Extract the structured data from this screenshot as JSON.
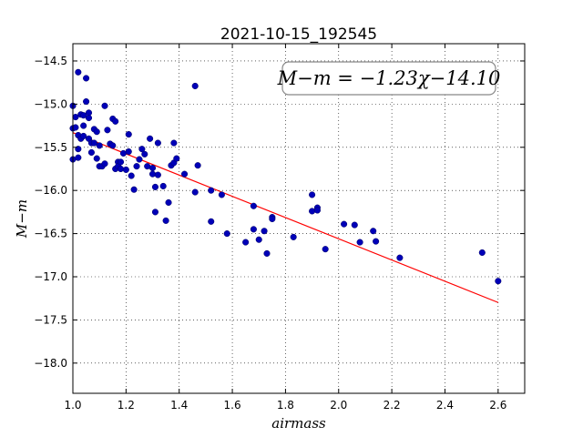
{
  "chart_data": {
    "type": "scatter",
    "title": "2021-10-15_192545",
    "xlabel": "airmass",
    "ylabel": "M−m",
    "xlim": [
      1.0,
      2.7
    ],
    "ylim": [
      -18.35,
      -14.3
    ],
    "y_inverted": true,
    "grid": true,
    "x_ticks": [
      1.0,
      1.2,
      1.4,
      1.6,
      1.8,
      2.0,
      2.2,
      2.4,
      2.6
    ],
    "x_tick_labels": [
      "1.0",
      "1.2",
      "1.4",
      "1.6",
      "1.8",
      "2.0",
      "2.2",
      "2.4",
      "2.6"
    ],
    "y_ticks": [
      -14.5,
      -15.0,
      -15.5,
      -16.0,
      -16.5,
      -17.0,
      -17.5,
      -18.0
    ],
    "y_tick_labels": [
      "−14.5",
      "−15.0",
      "−15.5",
      "−16.0",
      "−16.5",
      "−17.0",
      "−17.5",
      "−18.0"
    ],
    "annotation": "M−m = −1.23χ−14.10",
    "annotation_position": "top-right",
    "fit_line": {
      "slope": -1.23,
      "intercept": -14.1,
      "x_range": [
        1.0,
        2.6
      ],
      "color": "#ff0000"
    },
    "series": [
      {
        "marker_color": "#0000b8",
        "points": [
          [
            1.0,
            -15.02
          ],
          [
            1.0,
            -15.28
          ],
          [
            1.0,
            -15.64
          ],
          [
            1.01,
            -15.15
          ],
          [
            1.01,
            -15.27
          ],
          [
            1.02,
            -14.63
          ],
          [
            1.02,
            -15.36
          ],
          [
            1.02,
            -15.52
          ],
          [
            1.02,
            -15.62
          ],
          [
            1.03,
            -15.12
          ],
          [
            1.03,
            -15.4
          ],
          [
            1.04,
            -15.13
          ],
          [
            1.04,
            -15.25
          ],
          [
            1.04,
            -15.37
          ],
          [
            1.05,
            -14.7
          ],
          [
            1.05,
            -14.97
          ],
          [
            1.06,
            -15.1
          ],
          [
            1.06,
            -15.16
          ],
          [
            1.06,
            -15.4
          ],
          [
            1.07,
            -15.45
          ],
          [
            1.07,
            -15.56
          ],
          [
            1.08,
            -15.29
          ],
          [
            1.08,
            -15.45
          ],
          [
            1.09,
            -15.32
          ],
          [
            1.09,
            -15.63
          ],
          [
            1.1,
            -15.48
          ],
          [
            1.1,
            -15.72
          ],
          [
            1.11,
            -15.72
          ],
          [
            1.12,
            -15.69
          ],
          [
            1.12,
            -15.02
          ],
          [
            1.13,
            -15.3
          ],
          [
            1.14,
            -15.46
          ],
          [
            1.15,
            -15.17
          ],
          [
            1.15,
            -15.48
          ],
          [
            1.16,
            -15.2
          ],
          [
            1.16,
            -15.75
          ],
          [
            1.17,
            -15.67
          ],
          [
            1.17,
            -15.72
          ],
          [
            1.18,
            -15.67
          ],
          [
            1.18,
            -15.75
          ],
          [
            1.19,
            -15.57
          ],
          [
            1.2,
            -15.76
          ],
          [
            1.21,
            -15.35
          ],
          [
            1.21,
            -15.55
          ],
          [
            1.22,
            -15.83
          ],
          [
            1.23,
            -15.99
          ],
          [
            1.24,
            -15.72
          ],
          [
            1.25,
            -15.64
          ],
          [
            1.26,
            -15.52
          ],
          [
            1.27,
            -15.58
          ],
          [
            1.28,
            -15.72
          ],
          [
            1.29,
            -15.4
          ],
          [
            1.3,
            -15.74
          ],
          [
            1.3,
            -15.81
          ],
          [
            1.31,
            -15.96
          ],
          [
            1.31,
            -16.25
          ],
          [
            1.32,
            -15.45
          ],
          [
            1.32,
            -15.82
          ],
          [
            1.34,
            -15.95
          ],
          [
            1.35,
            -16.35
          ],
          [
            1.36,
            -16.14
          ],
          [
            1.37,
            -15.71
          ],
          [
            1.38,
            -15.68
          ],
          [
            1.38,
            -15.45
          ],
          [
            1.39,
            -15.63
          ],
          [
            1.42,
            -15.81
          ],
          [
            1.46,
            -14.79
          ],
          [
            1.46,
            -16.02
          ],
          [
            1.47,
            -15.71
          ],
          [
            1.52,
            -16.0
          ],
          [
            1.52,
            -16.36
          ],
          [
            1.56,
            -16.05
          ],
          [
            1.58,
            -16.5
          ],
          [
            1.65,
            -16.6
          ],
          [
            1.68,
            -16.18
          ],
          [
            1.68,
            -16.45
          ],
          [
            1.7,
            -16.57
          ],
          [
            1.72,
            -16.47
          ],
          [
            1.73,
            -16.73
          ],
          [
            1.75,
            -16.31
          ],
          [
            1.75,
            -16.33
          ],
          [
            1.83,
            -16.54
          ],
          [
            1.9,
            -16.05
          ],
          [
            1.9,
            -16.24
          ],
          [
            1.92,
            -16.2
          ],
          [
            1.92,
            -16.23
          ],
          [
            1.95,
            -16.68
          ],
          [
            2.02,
            -16.39
          ],
          [
            2.06,
            -16.4
          ],
          [
            2.08,
            -16.6
          ],
          [
            2.13,
            -16.47
          ],
          [
            2.14,
            -16.59
          ],
          [
            2.23,
            -16.78
          ],
          [
            2.54,
            -16.72
          ],
          [
            2.6,
            -17.05
          ]
        ]
      }
    ]
  }
}
